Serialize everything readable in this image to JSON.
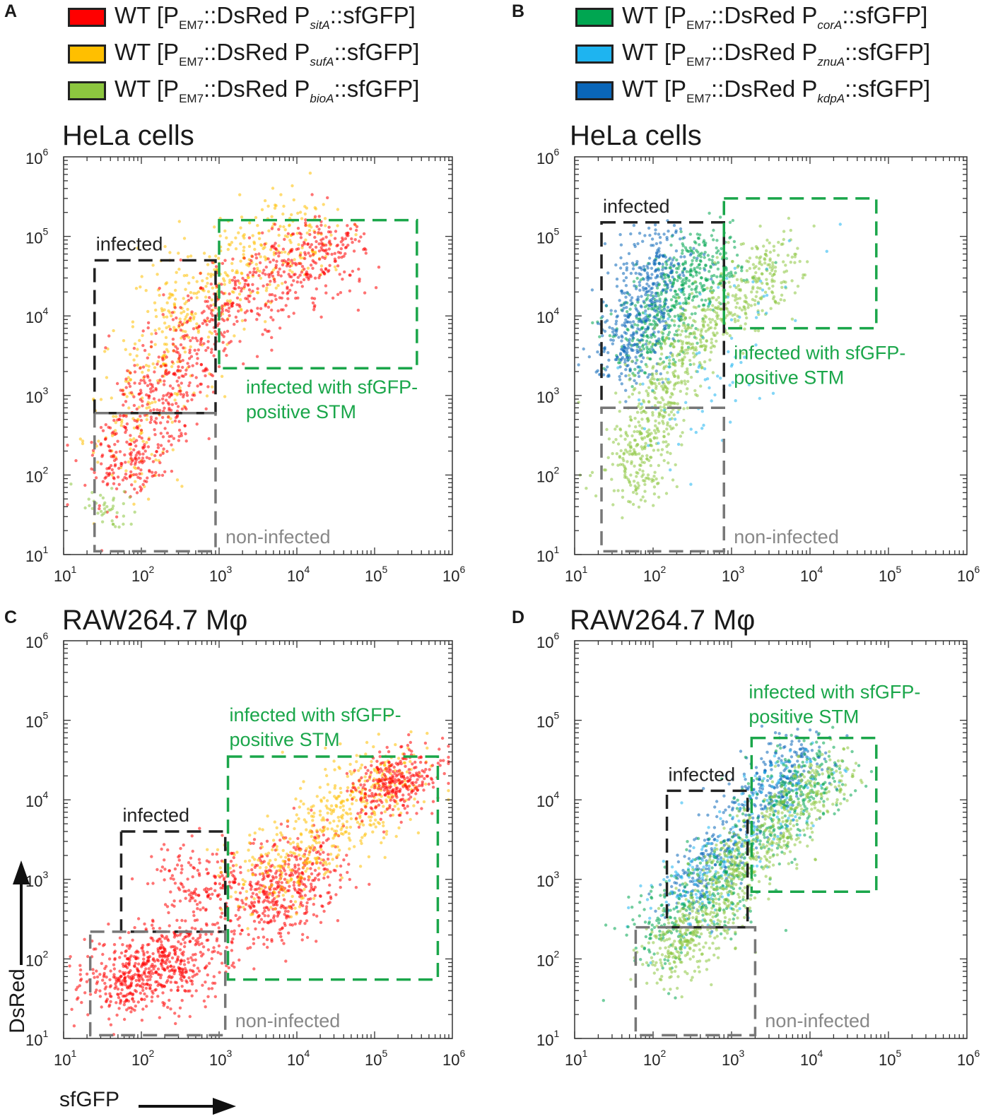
{
  "panels": [
    {
      "letter": "A"
    },
    {
      "letter": "B"
    },
    {
      "letter": "C"
    },
    {
      "letter": "D"
    }
  ],
  "legend_left": [
    {
      "prefix": "WT [P",
      "sub1": "EM7",
      "mid": "::DsRed P",
      "sub2": "sitA",
      "suffix": "::sfGFP]",
      "color": "#ff0000"
    },
    {
      "prefix": "WT [P",
      "sub1": "EM7",
      "mid": "::DsRed P",
      "sub2": "sufA",
      "suffix": "::sfGFP]",
      "color": "#ffbf00"
    },
    {
      "prefix": "WT [P",
      "sub1": "EM7",
      "mid": "::DsRed P",
      "sub2": "bioA",
      "suffix": "::sfGFP]",
      "color": "#8cc63f"
    }
  ],
  "legend_right": [
    {
      "prefix": "WT [P",
      "sub1": "EM7",
      "mid": "::DsRed P",
      "sub2": "corA",
      "suffix": "::sfGFP]",
      "color": "#00a651"
    },
    {
      "prefix": "WT [P",
      "sub1": "EM7",
      "mid": "::DsRed P",
      "sub2": "znuA",
      "suffix": "::sfGFP]",
      "color": "#1eb4f0"
    },
    {
      "prefix": "WT [P",
      "sub1": "EM7",
      "mid": "::DsRed P",
      "sub2": "kdpA",
      "suffix": "::sfGFP]",
      "color": "#0a66b8"
    }
  ],
  "axes": {
    "xlabel": "sfGFP",
    "ylabel": "DsRed"
  },
  "colors": {
    "red": "#ff0000",
    "orange": "#ffbf00",
    "lightgreen": "#8cc63f",
    "green": "#00a651",
    "cyan": "#1eb4f0",
    "blue": "#0a66b8",
    "gate_black": "#222222",
    "gate_gray": "#777777",
    "gate_green": "#1aa64a",
    "text_green": "#1aa64a",
    "text_gray": "#888888"
  },
  "chart_data": [
    {
      "id": "A",
      "type": "scatter",
      "title": "HeLa cells",
      "xscale": "log",
      "yscale": "log",
      "xlim": [
        10,
        1000000
      ],
      "ylim": [
        10,
        1000000
      ],
      "xticks": [
        {
          "base": "10",
          "exp": "1"
        },
        {
          "base": "10",
          "exp": "2"
        },
        {
          "base": "10",
          "exp": "3"
        },
        {
          "base": "10",
          "exp": "4"
        },
        {
          "base": "10",
          "exp": "5"
        },
        {
          "base": "10",
          "exp": "6"
        }
      ],
      "yticks": [
        {
          "base": "10",
          "exp": "1"
        },
        {
          "base": "10",
          "exp": "2"
        },
        {
          "base": "10",
          "exp": "3"
        },
        {
          "base": "10",
          "exp": "4"
        },
        {
          "base": "10",
          "exp": "5"
        },
        {
          "base": "10",
          "exp": "6"
        }
      ],
      "gates": [
        {
          "label": "infected",
          "kind": "black",
          "x": [
            25,
            900
          ],
          "y": [
            600,
            50000
          ]
        },
        {
          "label": "non-infected",
          "kind": "gray",
          "x": [
            25,
            900
          ],
          "y": [
            11,
            600
          ]
        },
        {
          "label": "infected with sfGFP-positive STM",
          "kind": "green",
          "x": [
            1000,
            350000
          ],
          "y": [
            2200,
            160000
          ]
        }
      ],
      "annotations": {
        "infected": "infected",
        "noninfected": "non-infected",
        "positive_line1": "infected with sfGFP-",
        "positive_line2": "positive STM"
      },
      "populations": [
        {
          "series": "sufA",
          "color": "#ffbf00",
          "centers": [
            [
              60,
              120
            ],
            [
              150,
              2500
            ],
            [
              400,
              15000
            ],
            [
              2500,
              60000
            ],
            [
              15000,
              120000
            ]
          ],
          "spread": 0.32,
          "n": 520
        },
        {
          "series": "sitA",
          "color": "#ff0000",
          "centers": [
            [
              50,
              90
            ],
            [
              100,
              300
            ],
            [
              300,
              3000
            ],
            [
              1500,
              15000
            ],
            [
              8000,
              40000
            ],
            [
              40000,
              80000
            ]
          ],
          "spread": 0.28,
          "n": 900
        },
        {
          "series": "bioA",
          "color": "#8cc63f",
          "centers": [
            [
              40,
              40
            ]
          ],
          "spread": 0.15,
          "n": 40
        }
      ]
    },
    {
      "id": "B",
      "type": "scatter",
      "title": "HeLa cells",
      "xscale": "log",
      "yscale": "log",
      "xlim": [
        10,
        1000000
      ],
      "ylim": [
        10,
        1000000
      ],
      "xticks": [
        {
          "base": "10",
          "exp": "1"
        },
        {
          "base": "10",
          "exp": "2"
        },
        {
          "base": "10",
          "exp": "3"
        },
        {
          "base": "10",
          "exp": "4"
        },
        {
          "base": "10",
          "exp": "5"
        },
        {
          "base": "10",
          "exp": "6"
        }
      ],
      "yticks": [
        {
          "base": "10",
          "exp": "1"
        },
        {
          "base": "10",
          "exp": "2"
        },
        {
          "base": "10",
          "exp": "3"
        },
        {
          "base": "10",
          "exp": "4"
        },
        {
          "base": "10",
          "exp": "5"
        },
        {
          "base": "10",
          "exp": "6"
        }
      ],
      "gates": [
        {
          "label": "infected",
          "kind": "black",
          "x": [
            22,
            800
          ],
          "y": [
            700,
            150000
          ]
        },
        {
          "label": "non-infected",
          "kind": "gray",
          "x": [
            22,
            800
          ],
          "y": [
            11,
            700
          ]
        },
        {
          "label": "infected with sfGFP-positive STM",
          "kind": "green",
          "x": [
            800,
            70000
          ],
          "y": [
            7000,
            300000
          ]
        }
      ],
      "annotations": {
        "infected": "infected",
        "noninfected": "non-infected",
        "positive_line1": "infected with sfGFP-",
        "positive_line2": "positive STM"
      },
      "populations": [
        {
          "series": "corA",
          "color": "#00a651",
          "centers": [
            [
              60,
              3000
            ],
            [
              200,
              20000
            ],
            [
              600,
              70000
            ]
          ],
          "spread": 0.25,
          "n": 500
        },
        {
          "series": "kdpA",
          "color": "#0a66b8",
          "centers": [
            [
              40,
              2000
            ],
            [
              70,
              15000
            ],
            [
              150,
              90000
            ]
          ],
          "spread": 0.22,
          "n": 450
        },
        {
          "series": "bioA",
          "color": "#8cc63f",
          "centers": [
            [
              50,
              60
            ],
            [
              80,
              400
            ],
            [
              200,
              3000
            ],
            [
              1000,
              15000
            ],
            [
              5000,
              60000
            ]
          ],
          "spread": 0.22,
          "n": 800
        },
        {
          "series": "znuA",
          "color": "#1eb4f0",
          "centers": [
            [
              150,
              300
            ],
            [
              3000,
              40000
            ]
          ],
          "spread": 0.4,
          "n": 90
        }
      ]
    },
    {
      "id": "C",
      "type": "scatter",
      "title": "RAW264.7 Mφ",
      "xscale": "log",
      "yscale": "log",
      "xlim": [
        10,
        1000000
      ],
      "ylim": [
        10,
        1000000
      ],
      "xticks": [
        {
          "base": "10",
          "exp": "1"
        },
        {
          "base": "10",
          "exp": "2"
        },
        {
          "base": "10",
          "exp": "3"
        },
        {
          "base": "10",
          "exp": "4"
        },
        {
          "base": "10",
          "exp": "5"
        },
        {
          "base": "10",
          "exp": "6"
        }
      ],
      "yticks": [
        {
          "base": "10",
          "exp": "1"
        },
        {
          "base": "10",
          "exp": "2"
        },
        {
          "base": "10",
          "exp": "3"
        },
        {
          "base": "10",
          "exp": "4"
        },
        {
          "base": "10",
          "exp": "5"
        },
        {
          "base": "10",
          "exp": "6"
        }
      ],
      "gates": [
        {
          "label": "infected",
          "kind": "black",
          "x": [
            55,
            1200
          ],
          "y": [
            220,
            4000
          ]
        },
        {
          "label": "non-infected",
          "kind": "gray",
          "x": [
            22,
            1200
          ],
          "y": [
            11,
            220
          ]
        },
        {
          "label": "infected with sfGFP-positive STM",
          "kind": "green",
          "x": [
            1300,
            650000
          ],
          "y": [
            55,
            35000
          ]
        }
      ],
      "annotations": {
        "infected": "infected",
        "noninfected": "non-infected",
        "positive_line1": "infected with sfGFP-",
        "positive_line2": "positive STM"
      },
      "populations": [
        {
          "series": "sitA-low",
          "color": "#ff0000",
          "centers": [
            [
              40,
              50
            ],
            [
              150,
              70
            ],
            [
              500,
              120
            ]
          ],
          "spread": 0.3,
          "n": 600
        },
        {
          "series": "sitA-mid",
          "color": "#ff0000",
          "centers": [
            [
              300,
              1200
            ],
            [
              5000,
              400
            ],
            [
              20000,
              2500
            ]
          ],
          "spread": 0.3,
          "n": 600
        },
        {
          "series": "sufA",
          "color": "#ffbf00",
          "centers": [
            [
              3000,
              800
            ],
            [
              30000,
              5000
            ],
            [
              200000,
              25000
            ]
          ],
          "spread": 0.3,
          "n": 500
        },
        {
          "series": "sitA-high",
          "color": "#ff0000",
          "centers": [
            [
              100000,
              10000
            ],
            [
              400000,
              30000
            ]
          ],
          "spread": 0.22,
          "n": 300
        }
      ]
    },
    {
      "id": "D",
      "type": "scatter",
      "title": "RAW264.7 Mφ",
      "xscale": "log",
      "yscale": "log",
      "xlim": [
        10,
        1000000
      ],
      "ylim": [
        10,
        1000000
      ],
      "xticks": [
        {
          "base": "10",
          "exp": "1"
        },
        {
          "base": "10",
          "exp": "2"
        },
        {
          "base": "10",
          "exp": "3"
        },
        {
          "base": "10",
          "exp": "4"
        },
        {
          "base": "10",
          "exp": "5"
        },
        {
          "base": "10",
          "exp": "6"
        }
      ],
      "yticks": [
        {
          "base": "10",
          "exp": "1"
        },
        {
          "base": "10",
          "exp": "2"
        },
        {
          "base": "10",
          "exp": "3"
        },
        {
          "base": "10",
          "exp": "4"
        },
        {
          "base": "10",
          "exp": "5"
        },
        {
          "base": "10",
          "exp": "6"
        }
      ],
      "gates": [
        {
          "label": "infected",
          "kind": "black",
          "x": [
            150,
            1600
          ],
          "y": [
            250,
            13000
          ]
        },
        {
          "label": "non-infected",
          "kind": "gray",
          "x": [
            60,
            2000
          ],
          "y": [
            11,
            250
          ]
        },
        {
          "label": "infected with sfGFP-positive STM",
          "kind": "green",
          "x": [
            1800,
            70000
          ],
          "y": [
            700,
            60000
          ]
        }
      ],
      "annotations": {
        "infected": "infected",
        "noninfected": "non-infected",
        "positive_line1": "infected with sfGFP-",
        "positive_line2": "positive STM"
      },
      "populations": [
        {
          "series": "kdpA",
          "color": "#0a66b8",
          "centers": [
            [
              200,
              500
            ],
            [
              800,
              3000
            ],
            [
              3000,
              15000
            ],
            [
              10000,
              40000
            ]
          ],
          "spread": 0.22,
          "n": 450
        },
        {
          "series": "znuA",
          "color": "#1eb4f0",
          "centers": [
            [
              150,
              300
            ],
            [
              1000,
              2000
            ],
            [
              8000,
              25000
            ]
          ],
          "spread": 0.25,
          "n": 250
        },
        {
          "series": "corA",
          "color": "#00a651",
          "centers": [
            [
              100,
              150
            ],
            [
              600,
              800
            ],
            [
              4000,
              8000
            ],
            [
              20000,
              30000
            ]
          ],
          "spread": 0.28,
          "n": 500
        },
        {
          "series": "bioA",
          "color": "#8cc63f",
          "centers": [
            [
              150,
              80
            ],
            [
              400,
              300
            ],
            [
              1200,
              1500
            ],
            [
              5000,
              6000
            ],
            [
              20000,
              25000
            ]
          ],
          "spread": 0.22,
          "n": 800
        }
      ]
    }
  ]
}
